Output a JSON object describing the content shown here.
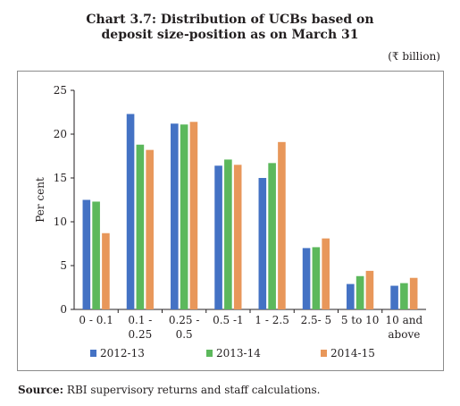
{
  "title_line1": "Chart 3.7: Distribution of UCBs based on",
  "title_line2": "deposit size-position as on March 31",
  "unit_label": "(₹ billion)",
  "source_label": "Source:",
  "source_text": "RBI supervisory returns and staff calculations.",
  "chart_data": {
    "type": "bar",
    "title": "Chart 3.7: Distribution of UCBs based on deposit size-position as on March 31",
    "ylabel": "Per cent",
    "xlabel": "",
    "ylim": [
      0,
      25
    ],
    "yticks": [
      0,
      5,
      10,
      15,
      20,
      25
    ],
    "grid": false,
    "legend_position": "bottom",
    "categories": [
      [
        "0 - 0.1"
      ],
      [
        "0.1 -",
        "0.25"
      ],
      [
        "0.25 -",
        "0.5"
      ],
      [
        "0.5 -1"
      ],
      [
        "1 - 2.5"
      ],
      [
        "2.5- 5"
      ],
      [
        "5 to 10"
      ],
      [
        "10 and",
        "above"
      ]
    ],
    "series": [
      {
        "name": "2012-13",
        "color": "#4472c4",
        "values": [
          12.5,
          22.3,
          21.2,
          16.4,
          15.0,
          7.0,
          2.9,
          2.7
        ]
      },
      {
        "name": "2013-14",
        "color": "#5cb85c",
        "values": [
          12.3,
          18.8,
          21.1,
          17.1,
          16.7,
          7.1,
          3.8,
          3.0
        ]
      },
      {
        "name": "2014-15",
        "color": "#e8975a",
        "values": [
          8.7,
          18.2,
          21.4,
          16.5,
          19.1,
          8.1,
          4.4,
          3.6
        ]
      }
    ]
  }
}
